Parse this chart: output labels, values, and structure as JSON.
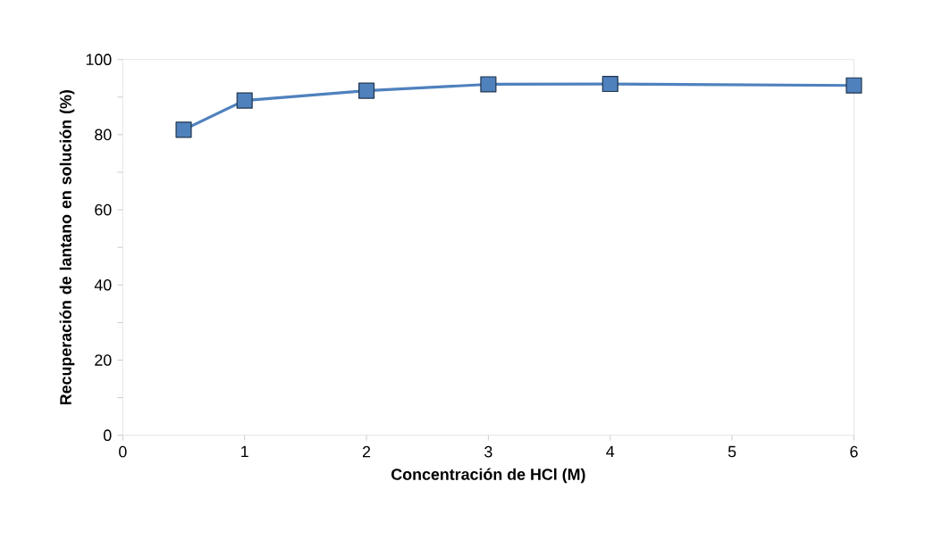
{
  "chart_data": {
    "type": "line",
    "xlabel": "Concentración de HCl  (M)",
    "ylabel": "Recuperación  de lantano en solución (%)",
    "x": [
      0.5,
      1,
      2,
      3,
      4,
      6
    ],
    "series": [
      {
        "color": "#4f81bd",
        "values": [
          81.3,
          89.1,
          91.7,
          93.4,
          93.5,
          93.1
        ]
      }
    ],
    "marker": "square",
    "line_style": "solid",
    "xlim": [
      0,
      6
    ],
    "xticks": [
      0,
      1,
      2,
      3,
      4,
      5,
      6
    ],
    "ylim": [
      0,
      100
    ],
    "yticks": [
      0,
      {
        "value": 10,
        "label": null
      },
      20,
      {
        "value": 30,
        "label": null
      },
      40,
      {
        "value": 50,
        "label": null
      },
      60,
      {
        "value": 70,
        "label": null
      },
      80,
      {
        "value": 90,
        "label": null
      },
      100
    ]
  }
}
